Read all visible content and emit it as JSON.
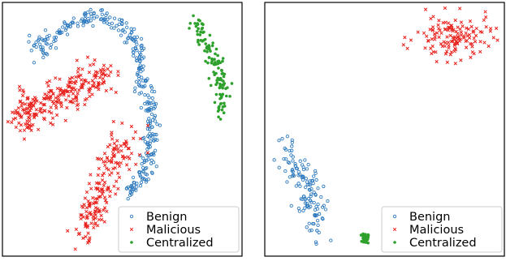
{
  "colors": {
    "Benign": "#2f7bbf",
    "Malicious": "#e8211c",
    "Centralized": "#2ea02c"
  },
  "chart_data": [
    {
      "type": "scatter",
      "grid": false,
      "xlim": [
        0,
        100
      ],
      "ylim": [
        0,
        100
      ],
      "axes_ticks": false,
      "legend_position": "bottom-right",
      "series": [
        {
          "name": "Benign",
          "marker": "circle-open",
          "color": "#2f7bbf",
          "clusters": [
            {
              "shape": "curve",
              "n": 320,
              "spread": 1.6,
              "path": [
                [
                  15,
                  80
                ],
                [
                  20,
                  86
                ],
                [
                  27,
                  91
                ],
                [
                  35,
                  94
                ],
                [
                  43,
                  94
                ],
                [
                  50,
                  91
                ],
                [
                  55,
                  85
                ],
                [
                  58,
                  76
                ],
                [
                  60,
                  66
                ],
                [
                  62,
                  55
                ],
                [
                  62,
                  44
                ],
                [
                  60,
                  34
                ],
                [
                  56,
                  27
                ],
                [
                  52,
                  25
                ]
              ]
            },
            {
              "shape": "blob",
              "n": 10,
              "cx": 14,
              "cy": 84,
              "sx": 2,
              "sy": 2
            }
          ]
        },
        {
          "name": "Malicious",
          "marker": "x",
          "color": "#e8211c",
          "clusters": [
            {
              "shape": "curve",
              "n": 230,
              "spread": 3.5,
              "path": [
                [
                  6,
                  52
                ],
                [
                  14,
                  57
                ],
                [
                  22,
                  62
                ],
                [
                  30,
                  67
                ],
                [
                  37,
                  70
                ],
                [
                  42,
                  72
                ]
              ]
            },
            {
              "shape": "curve",
              "n": 30,
              "spread": 2.0,
              "path": [
                [
                  6,
                  64
                ],
                [
                  12,
                  61
                ],
                [
                  18,
                  58
                ]
              ]
            },
            {
              "shape": "curve",
              "n": 170,
              "spread": 3.0,
              "path": [
                [
                  33,
                  7
                ],
                [
                  36,
                  14
                ],
                [
                  39,
                  21
                ],
                [
                  42,
                  28
                ],
                [
                  45,
                  34
                ],
                [
                  47,
                  40
                ],
                [
                  49,
                  44
                ]
              ]
            },
            {
              "shape": "blob",
              "n": 14,
              "cx": 54,
              "cy": 45,
              "sx": 4,
              "sy": 8
            }
          ]
        },
        {
          "name": "Centralized",
          "marker": "dot",
          "color": "#2ea02c",
          "clusters": [
            {
              "shape": "curve",
              "n": 120,
              "spread": 1.6,
              "path": [
                [
                  80,
                  93
                ],
                [
                  84,
                  86
                ],
                [
                  88,
                  78
                ],
                [
                  91,
                  70
                ],
                [
                  92,
                  63
                ],
                [
                  90,
                  57
                ]
              ]
            }
          ]
        }
      ]
    },
    {
      "type": "scatter",
      "grid": false,
      "xlim": [
        0,
        100
      ],
      "ylim": [
        0,
        100
      ],
      "axes_ticks": false,
      "legend_position": "bottom-right",
      "series": [
        {
          "name": "Benign",
          "marker": "circle-open",
          "color": "#2f7bbf",
          "clusters": [
            {
              "shape": "curve",
              "n": 130,
              "spread": 2.8,
              "path": [
                [
                  8,
                  43
                ],
                [
                  11,
                  38
                ],
                [
                  15,
                  32
                ],
                [
                  19,
                  24
                ],
                [
                  21,
                  16
                ],
                [
                  22,
                  10
                ]
              ]
            }
          ]
        },
        {
          "name": "Malicious",
          "marker": "x",
          "color": "#e8211c",
          "clusters": [
            {
              "shape": "blob",
              "n": 140,
              "cx": 79,
              "cy": 86,
              "sx": 8,
              "sy": 4.5
            }
          ]
        },
        {
          "name": "Centralized",
          "marker": "dot",
          "color": "#2ea02c",
          "clusters": [
            {
              "shape": "blob",
              "n": 45,
              "cx": 42,
              "cy": 7,
              "sx": 0.6,
              "sy": 1.0
            }
          ]
        }
      ]
    }
  ]
}
